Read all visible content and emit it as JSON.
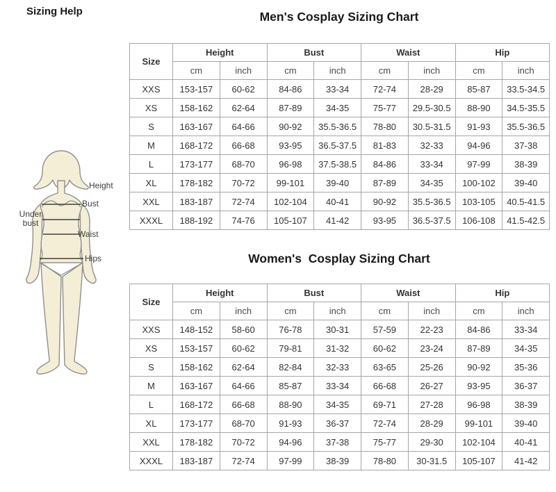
{
  "page_title": "Sizing Help",
  "colors": {
    "border": "#a6a6a6",
    "text": "#333333",
    "subheader_text": "#4a4a4a",
    "title": "#1a1a1a",
    "body_fill": "#f4eed7",
    "body_outline": "#8f8f8f",
    "measure_line": "#3f3f3f"
  },
  "figure": {
    "labels": {
      "height": "Height",
      "bust": "Bust",
      "under_bust_line1": "Under",
      "under_bust_line2": "bust",
      "waist": "Waist",
      "hips": "Hips"
    }
  },
  "tables": [
    {
      "title": "Men's Cosplay Sizing Chart",
      "size_header": "Size",
      "groups": [
        "Height",
        "Bust",
        "Waist",
        "Hip"
      ],
      "units": [
        "cm",
        "inch"
      ],
      "rows": [
        {
          "size": "XXS",
          "cells": [
            "153-157",
            "60-62",
            "84-86",
            "33-34",
            "72-74",
            "28-29",
            "85-87",
            "33.5-34.5"
          ]
        },
        {
          "size": "XS",
          "cells": [
            "158-162",
            "62-64",
            "87-89",
            "34-35",
            "75-77",
            "29.5-30.5",
            "88-90",
            "34.5-35.5"
          ]
        },
        {
          "size": "S",
          "cells": [
            "163-167",
            "64-66",
            "90-92",
            "35.5-36.5",
            "78-80",
            "30.5-31.5",
            "91-93",
            "35.5-36.5"
          ]
        },
        {
          "size": "M",
          "cells": [
            "168-172",
            "66-68",
            "93-95",
            "36.5-37.5",
            "81-83",
            "32-33",
            "94-96",
            "37-38"
          ]
        },
        {
          "size": "L",
          "cells": [
            "173-177",
            "68-70",
            "96-98",
            "37.5-38.5",
            "84-86",
            "33-34",
            "97-99",
            "38-39"
          ]
        },
        {
          "size": "XL",
          "cells": [
            "178-182",
            "70-72",
            "99-101",
            "39-40",
            "87-89",
            "34-35",
            "100-102",
            "39-40"
          ]
        },
        {
          "size": "XXL",
          "cells": [
            "183-187",
            "72-74",
            "102-104",
            "40-41",
            "90-92",
            "35.5-36.5",
            "103-105",
            "40.5-41.5"
          ]
        },
        {
          "size": "XXXL",
          "cells": [
            "188-192",
            "74-76",
            "105-107",
            "41-42",
            "93-95",
            "36.5-37.5",
            "106-108",
            "41.5-42.5"
          ]
        }
      ]
    },
    {
      "title": "Women's  Cosplay Sizing Chart",
      "size_header": "Size",
      "groups": [
        "Height",
        "Bust",
        "Waist",
        "Hip"
      ],
      "units": [
        "cm",
        "inch"
      ],
      "rows": [
        {
          "size": "XXS",
          "cells": [
            "148-152",
            "58-60",
            "76-78",
            "30-31",
            "57-59",
            "22-23",
            "84-86",
            "33-34"
          ]
        },
        {
          "size": "XS",
          "cells": [
            "153-157",
            "60-62",
            "79-81",
            "31-32",
            "60-62",
            "23-24",
            "87-89",
            "34-35"
          ]
        },
        {
          "size": "S",
          "cells": [
            "158-162",
            "62-64",
            "82-84",
            "32-33",
            "63-65",
            "25-26",
            "90-92",
            "35-36"
          ]
        },
        {
          "size": "M",
          "cells": [
            "163-167",
            "64-66",
            "85-87",
            "33-34",
            "66-68",
            "26-27",
            "93-95",
            "36-37"
          ]
        },
        {
          "size": "L",
          "cells": [
            "168-172",
            "66-68",
            "88-90",
            "34-35",
            "69-71",
            "27-28",
            "96-98",
            "38-39"
          ]
        },
        {
          "size": "XL",
          "cells": [
            "173-177",
            "68-70",
            "91-93",
            "36-37",
            "72-74",
            "28-29",
            "99-101",
            "39-40"
          ]
        },
        {
          "size": "XXL",
          "cells": [
            "178-182",
            "70-72",
            "94-96",
            "37-38",
            "75-77",
            "29-30",
            "102-104",
            "40-41"
          ]
        },
        {
          "size": "XXXL",
          "cells": [
            "183-187",
            "72-74",
            "97-99",
            "38-39",
            "78-80",
            "30-31.5",
            "105-107",
            "41-42"
          ]
        }
      ]
    }
  ]
}
